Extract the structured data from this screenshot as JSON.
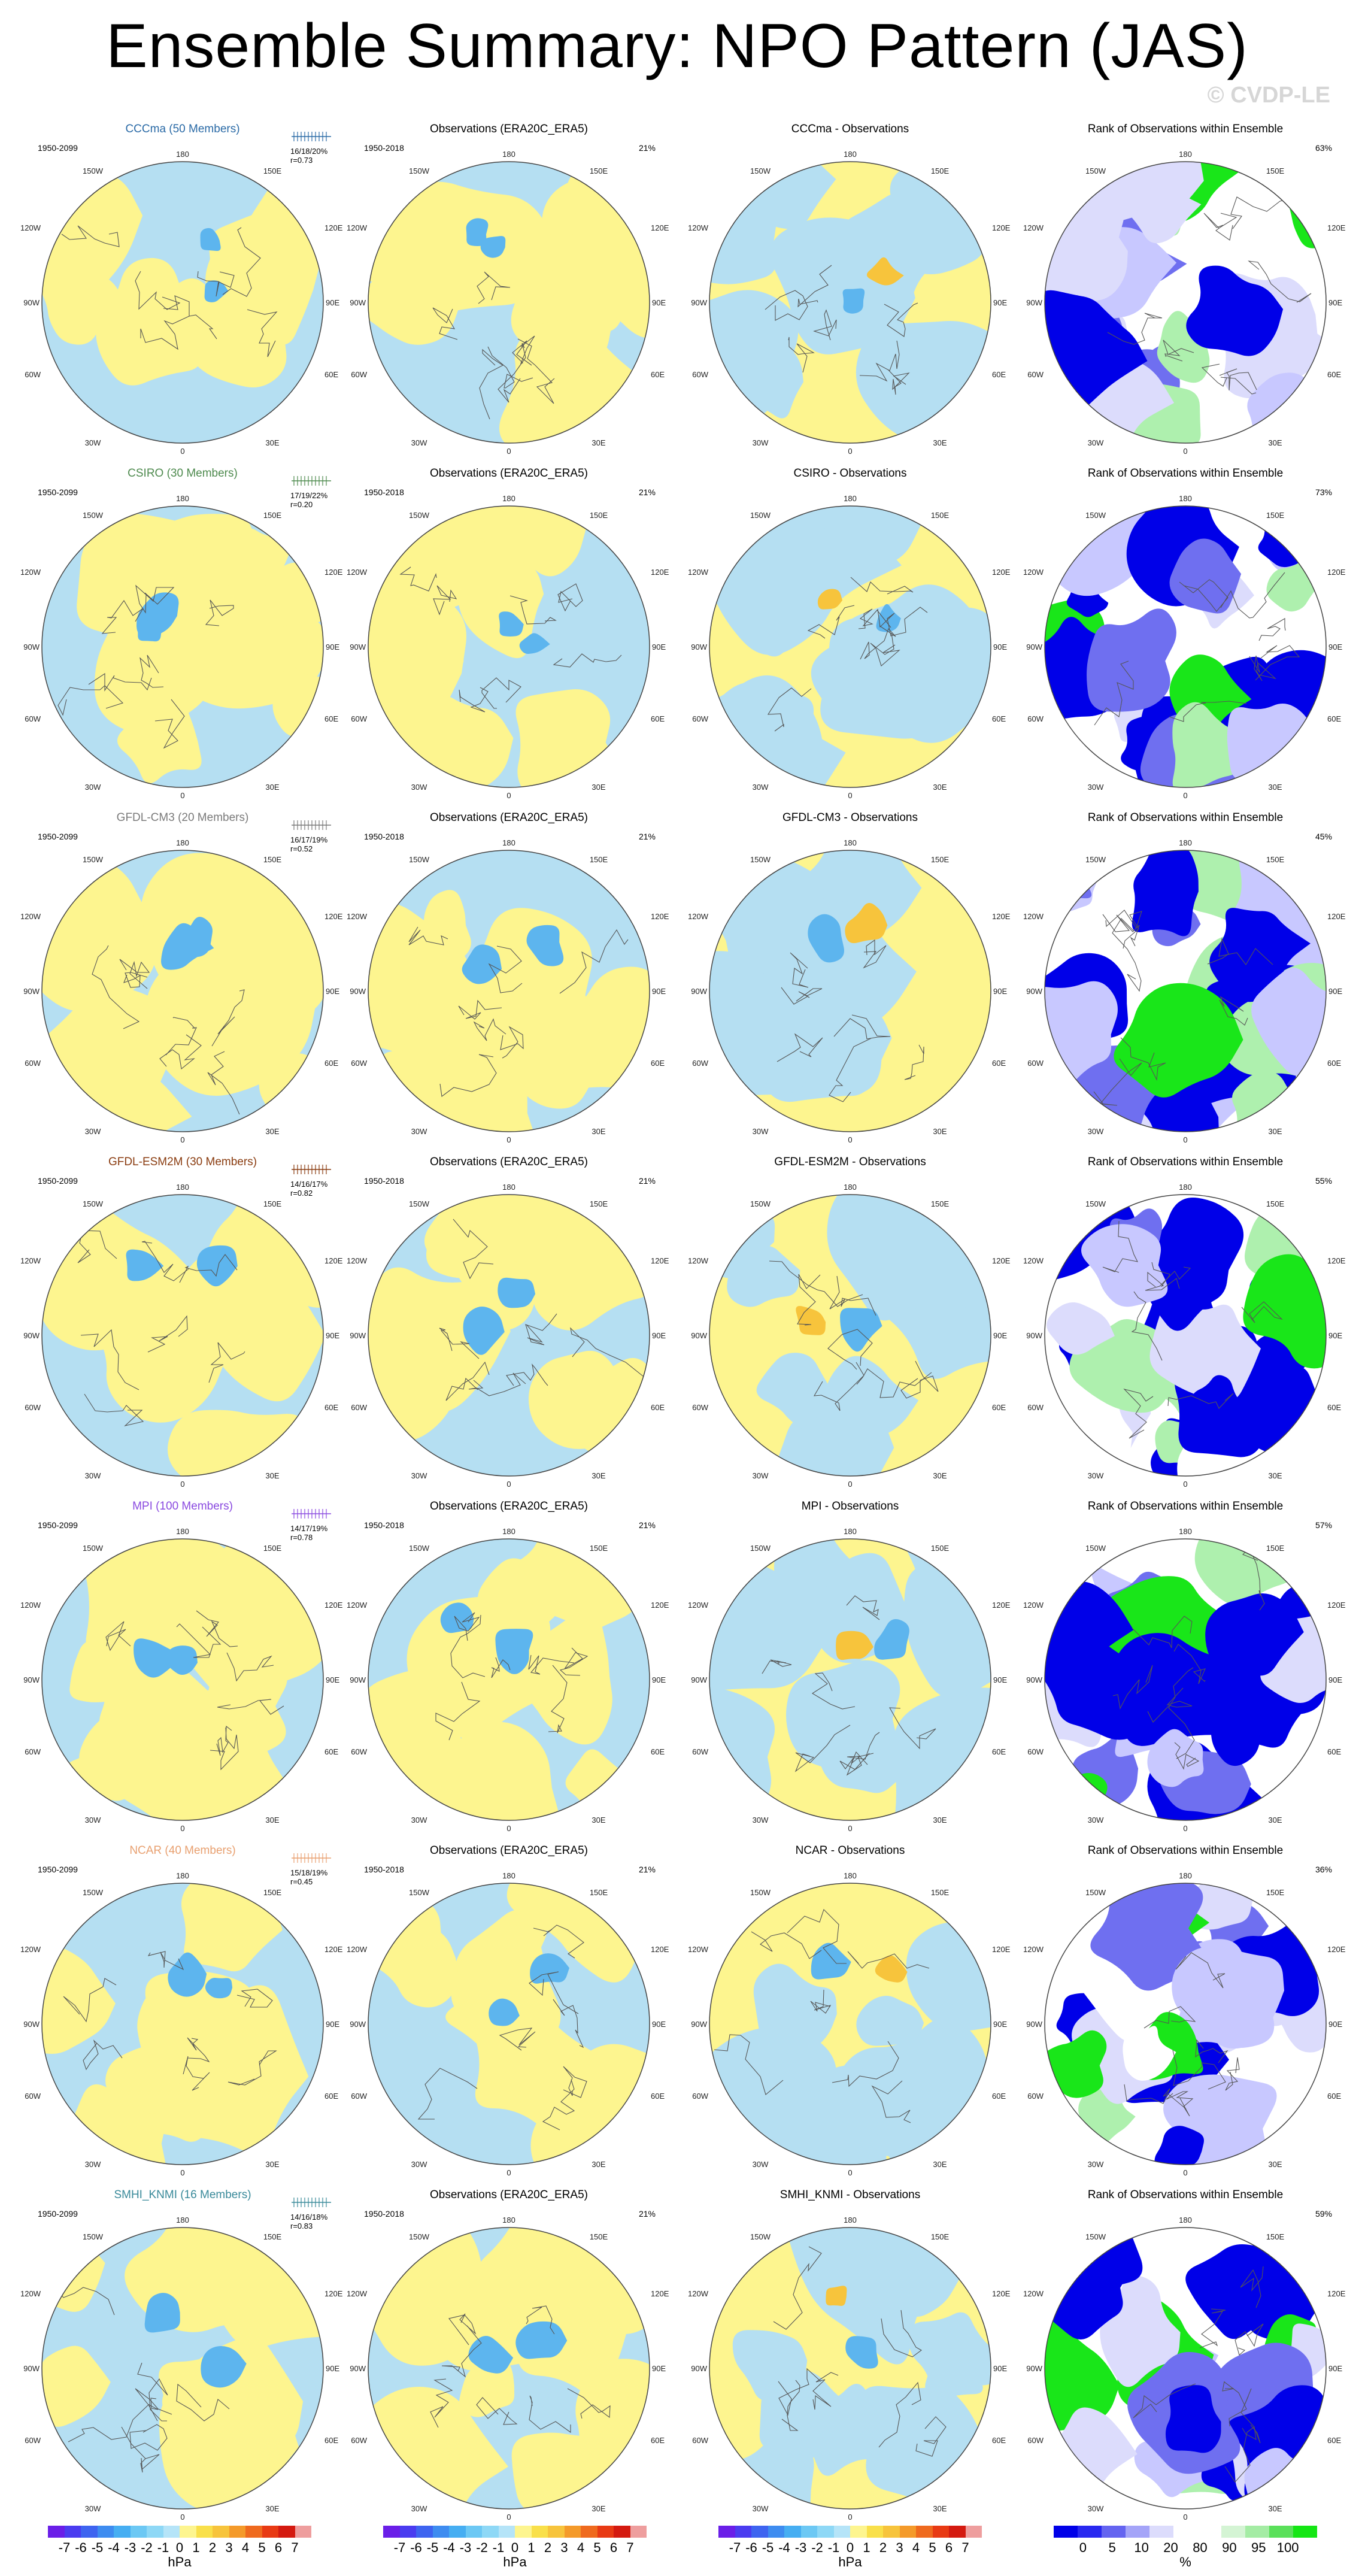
{
  "title": "Ensemble Summary: NPO Pattern (JAS)",
  "watermark": "© CVDP-LE",
  "colors": {
    "pos": "#fdf58f",
    "neg": "#b5dff2",
    "neg_dark": "#5db5ee",
    "pos_dark": "#f7c43c",
    "rank_low": "#0000e8",
    "rank_mid": "#c8c8ff",
    "rank_high": "#19e619",
    "rank_hi2": "#aef0ae"
  },
  "map_labels": {
    "top": "180",
    "tl": "150W",
    "tr": "150E",
    "ul": "120W",
    "ur": "120E",
    "l": "90W",
    "r": "90E",
    "ll": "60W",
    "lr": "60E",
    "bl": "30W",
    "br": "30E",
    "bottom": "0"
  },
  "obs_title": "Observations (ERA20C_ERA5)",
  "rank_title": "Rank of Observations within Ensemble",
  "obs_period": "1950-2018",
  "obs_pct": "21%",
  "rows": [
    {
      "model": "CCCma (50 Members)",
      "model_color": "#2a6aa6",
      "period": "1950-2099",
      "stats1": "16/18/20%",
      "stats2": "r=0.73",
      "diff_title": "CCCma - Observations",
      "rank_pct": "63%"
    },
    {
      "model": "CSIRO (30 Members)",
      "model_color": "#4e8a4e",
      "period": "1950-2099",
      "stats1": "17/19/22%",
      "stats2": "r=0.20",
      "diff_title": "CSIRO - Observations",
      "rank_pct": "73%"
    },
    {
      "model": "GFDL-CM3 (20 Members)",
      "model_color": "#7a7a7a",
      "period": "1950-2099",
      "stats1": "16/17/19%",
      "stats2": "r=0.52",
      "diff_title": "GFDL-CM3 - Observations",
      "rank_pct": "45%"
    },
    {
      "model": "GFDL-ESM2M (30 Members)",
      "model_color": "#8a3c10",
      "period": "1950-2099",
      "stats1": "14/16/17%",
      "stats2": "r=0.82",
      "diff_title": "GFDL-ESM2M - Observations",
      "rank_pct": "55%"
    },
    {
      "model": "MPI (100 Members)",
      "model_color": "#8a4ae0",
      "period": "1950-2099",
      "stats1": "14/17/19%",
      "stats2": "r=0.78",
      "diff_title": "MPI - Observations",
      "rank_pct": "57%"
    },
    {
      "model": "NCAR (40 Members)",
      "model_color": "#e8a070",
      "period": "1950-2099",
      "stats1": "15/18/19%",
      "stats2": "r=0.45",
      "diff_title": "NCAR - Observations",
      "rank_pct": "36%"
    },
    {
      "model": "SMHI_KNMI (16 Members)",
      "model_color": "#3a8a9a",
      "period": "1950-2099",
      "stats1": "14/16/18%",
      "stats2": "r=0.83",
      "diff_title": "SMHI_KNMI - Observations",
      "rank_pct": "59%"
    }
  ],
  "colorbar_hpa": {
    "colors": [
      "#6a1ee8",
      "#4a3cf0",
      "#3e64f0",
      "#3e8cf0",
      "#46aef2",
      "#6cc8f4",
      "#8ed8f6",
      "#b5e4f8",
      "#fdf58f",
      "#f9e04a",
      "#f7c43c",
      "#f49a2a",
      "#ef6a1e",
      "#e83a14",
      "#d41a10",
      "#ee9e9e"
    ],
    "labels": [
      "-7",
      "-6",
      "-5",
      "-4",
      "-3",
      "-2",
      "-1",
      "0",
      "1",
      "2",
      "3",
      "4",
      "5",
      "6",
      "7"
    ],
    "unit": "hPa"
  },
  "colorbar_rank": {
    "colors": [
      "#0000e8",
      "#2828f0",
      "#6464f0",
      "#a4a4f8",
      "#dcdcfc",
      "#ffffff",
      "#ffffff",
      "#d4f4d4",
      "#a4eca4",
      "#5ae05a",
      "#14e614"
    ],
    "labels": [
      "0",
      "5",
      "10",
      "20",
      "80",
      "90",
      "95",
      "100"
    ],
    "unit": "%"
  }
}
